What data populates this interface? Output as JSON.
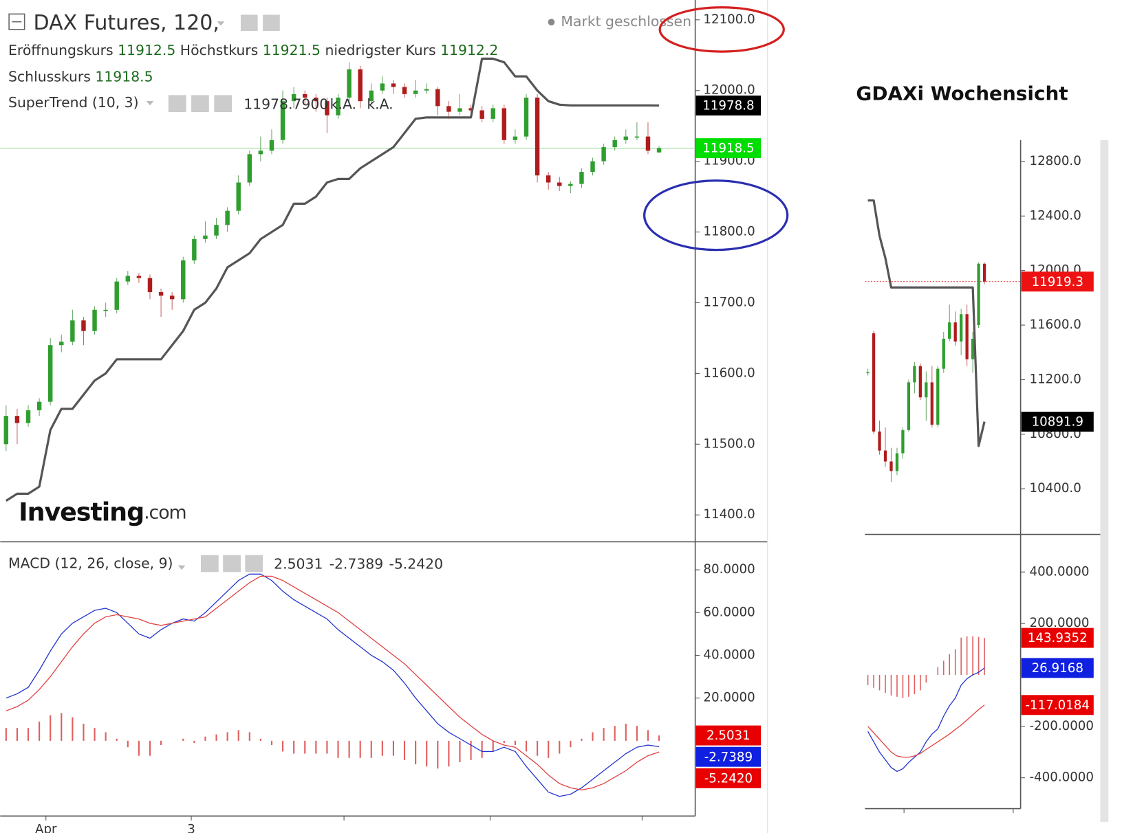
{
  "chart_data": [
    {
      "type": "candlestick",
      "title": "DAX Futures, 120,",
      "status": "Markt geschlossen",
      "ohlc_labels": {
        "open": "Eröffnungskurs",
        "high": "Höchstkurs",
        "low": "niedrigster Kurs",
        "close": "Schlusskurs"
      },
      "series": [
        {
          "name": "DAX Futures",
          "up_color": "#2f9e2f",
          "down_color": "#b01c1c",
          "open": [
            11500,
            11540,
            11530,
            11548,
            11560,
            11640,
            11645,
            11675,
            11660,
            11690,
            11690,
            11730,
            11738,
            11735,
            11715,
            11710,
            11705,
            11760,
            11790,
            11795,
            11810,
            11830,
            11870,
            11910,
            11915,
            11930,
            11985,
            11995,
            11990,
            11985,
            11965,
            11990,
            12030,
            11985,
            12000,
            12010,
            12005,
            11995,
            12000,
            12002,
            11978,
            11970,
            11975,
            11972,
            11960,
            11975,
            11930,
            11935,
            11990,
            11880,
            11870,
            11865,
            11868,
            11885,
            11900,
            11920,
            11930,
            11935,
            11935,
            11912.5
          ],
          "high": [
            11555,
            11550,
            11555,
            11565,
            11650,
            11655,
            11690,
            11680,
            11695,
            11700,
            11735,
            11745,
            11742,
            11740,
            11720,
            11715,
            11765,
            11795,
            11815,
            11820,
            11835,
            11880,
            11915,
            11935,
            11945,
            12000,
            12005,
            12000,
            11995,
            11990,
            11995,
            12040,
            12035,
            12010,
            12020,
            12015,
            12010,
            12015,
            12010,
            12005,
            11985,
            11995,
            11980,
            11978,
            11980,
            11980,
            11945,
            11995,
            11995,
            11885,
            11878,
            11872,
            11890,
            11905,
            11925,
            11935,
            11945,
            11955,
            11955,
            11921.5
          ],
          "low": [
            11490,
            11500,
            11525,
            11540,
            11555,
            11630,
            11640,
            11640,
            11655,
            11680,
            11685,
            11725,
            11728,
            11705,
            11680,
            11690,
            11700,
            11755,
            11785,
            11790,
            11800,
            11825,
            11865,
            11900,
            11910,
            11925,
            11975,
            11980,
            11970,
            11940,
            11960,
            11985,
            11975,
            11980,
            11995,
            11995,
            11990,
            11990,
            11995,
            11965,
            11960,
            11965,
            11965,
            11955,
            11955,
            11925,
            11925,
            11930,
            11870,
            11860,
            11858,
            11855,
            11862,
            11880,
            11895,
            11915,
            11925,
            11930,
            11910,
            11912.2
          ],
          "close": [
            11540,
            11530,
            11548,
            11560,
            11640,
            11645,
            11675,
            11660,
            11690,
            11690,
            11730,
            11738,
            11735,
            11715,
            11710,
            11705,
            11760,
            11790,
            11795,
            11810,
            11830,
            11870,
            11910,
            11915,
            11930,
            11985,
            11995,
            11990,
            11985,
            11965,
            11990,
            12030,
            11985,
            12000,
            12010,
            12005,
            11995,
            12000,
            12002,
            11978,
            11970,
            11975,
            11972,
            11960,
            11975,
            11930,
            11935,
            11990,
            11880,
            11870,
            11865,
            11868,
            11885,
            11900,
            11920,
            11930,
            11935,
            11935,
            11915,
            11918.5
          ]
        }
      ],
      "supertrend": {
        "name": "SuperTrend (10, 3)",
        "color": "#555555",
        "values": [
          11420,
          11430,
          11430,
          11440,
          11520,
          11550,
          11550,
          11570,
          11590,
          11600,
          11620,
          11620,
          11620,
          11620,
          11620,
          11640,
          11660,
          11690,
          11700,
          11720,
          11750,
          11760,
          11770,
          11790,
          11800,
          11810,
          11840,
          11840,
          11850,
          11870,
          11875,
          11875,
          11890,
          11900,
          11910,
          11920,
          11940,
          11960,
          11962,
          11962,
          11962,
          11962,
          11962,
          12045,
          12045,
          12040,
          12020,
          12020,
          12000,
          11985,
          11980,
          11979,
          11979,
          11979,
          11979,
          11979,
          11979,
          11979,
          11979,
          11978.79
        ],
        "last_label": "11978.7900",
        "tag_label": "11978.8",
        "na_labels": [
          "k.A.",
          "k.A."
        ]
      },
      "ylim": [
        11362,
        12128
      ],
      "yticks": [
        {
          "value": 12100,
          "label": "12100.0"
        },
        {
          "value": 12000,
          "label": "12000.0"
        },
        {
          "value": 11900,
          "label": "11900.0"
        },
        {
          "value": 11800,
          "label": "11800.0"
        },
        {
          "value": 11700,
          "label": "11700.0"
        },
        {
          "value": 11600,
          "label": "11600.0"
        },
        {
          "value": 11500,
          "label": "11500.0"
        },
        {
          "value": 11400,
          "label": "11400.0"
        }
      ],
      "xlabels": [
        "Apr",
        "3"
      ],
      "logo": [
        "Investing",
        ".com"
      ],
      "tag_color": "#00dd00"
    },
    {
      "type": "macd",
      "title": "MACD (12, 26, close, 9)",
      "series": [
        {
          "name": "Histogram",
          "color": "#e06060",
          "style": "histogram",
          "last_label": "2.5031",
          "values": [
            6,
            6,
            6,
            9,
            12,
            13,
            11,
            8,
            6,
            4,
            1,
            -3,
            -7,
            -7,
            -2,
            0,
            1,
            -1,
            2,
            3,
            4,
            5,
            4,
            1,
            -2,
            -5,
            -6,
            -6,
            -6,
            -6,
            -8,
            -8,
            -8,
            -8,
            -7,
            -7,
            -9,
            -11,
            -12,
            -13,
            -12,
            -10,
            -9,
            -8,
            -5,
            -1,
            -2,
            -5,
            -7,
            -8,
            -6,
            -3,
            1,
            4,
            6,
            7,
            8,
            7,
            5,
            2.5031
          ]
        },
        {
          "name": "MACD",
          "color": "#2233cc",
          "style": "line",
          "last_label": "-2.7389",
          "values": [
            20,
            22,
            25,
            33,
            42,
            50,
            55,
            58,
            61,
            62,
            60,
            55,
            50,
            48,
            52,
            55,
            57,
            56,
            60,
            65,
            70,
            75,
            78,
            78,
            75,
            70,
            66,
            63,
            60,
            57,
            52,
            48,
            44,
            40,
            37,
            33,
            27,
            20,
            14,
            8,
            4,
            1,
            -2,
            -5,
            -5,
            -3,
            -5,
            -12,
            -18,
            -24,
            -26,
            -25,
            -22,
            -18,
            -14,
            -10,
            -6,
            -3,
            -2,
            -2.7389
          ]
        },
        {
          "name": "Signal",
          "color": "#e04040",
          "style": "line",
          "last_label": "-5.2420",
          "values": [
            14,
            16,
            19,
            24,
            30,
            37,
            44,
            50,
            55,
            58,
            59,
            58,
            57,
            55,
            54,
            55,
            56,
            57,
            58,
            62,
            66,
            70,
            74,
            77,
            77,
            75,
            72,
            69,
            66,
            63,
            60,
            56,
            52,
            48,
            44,
            40,
            36,
            31,
            26,
            21,
            16,
            11,
            7,
            3,
            0,
            -2,
            -3,
            -7,
            -11,
            -16,
            -20,
            -22,
            -23,
            -22,
            -20,
            -17,
            -14,
            -10,
            -7,
            -5.242
          ]
        }
      ],
      "ylim": [
        -35.2,
        93.1
      ],
      "yticks": [
        {
          "value": 80,
          "label": "80.0000"
        },
        {
          "value": 60,
          "label": "60.0000"
        },
        {
          "value": 40,
          "label": "40.0000"
        },
        {
          "value": 20,
          "label": "20.0000"
        }
      ]
    },
    {
      "type": "candlestick",
      "title": "GDAXi Wochensicht",
      "series": [
        {
          "name": "GDAXi",
          "up_color": "#2f9e2f",
          "down_color": "#b01c1c",
          "open": [
            11250,
            11540,
            10820,
            10680,
            10600,
            10530,
            10660,
            10830,
            11180,
            11300,
            11070,
            11180,
            10870,
            11280,
            11500,
            11620,
            11480,
            11680,
            11350,
            11600,
            12050
          ],
          "high": [
            11280,
            11560,
            10900,
            10850,
            10700,
            10700,
            10850,
            11200,
            11330,
            11320,
            11260,
            11300,
            11300,
            11550,
            11750,
            11700,
            11720,
            11750,
            11550,
            12060,
            12060
          ],
          "low": [
            11230,
            10800,
            10650,
            10560,
            10450,
            10500,
            10620,
            10820,
            11100,
            11050,
            10900,
            10850,
            10850,
            11250,
            11480,
            11450,
            11380,
            11300,
            11250,
            11580,
            11900
          ],
          "close": [
            11255,
            10820,
            10680,
            10600,
            10530,
            10660,
            10830,
            11180,
            11300,
            11070,
            11180,
            10870,
            11280,
            11500,
            11620,
            11480,
            11680,
            11350,
            11500,
            12050,
            11919.3
          ]
        }
      ],
      "supertrend": {
        "name": "SuperTrend",
        "color": "#555555",
        "values": [
          12514,
          12514,
          12254,
          12092,
          11876,
          11876,
          11876,
          11876,
          11876,
          11876,
          11876,
          11876,
          11876,
          11876,
          11876,
          11876,
          11876,
          11876,
          11876,
          10714,
          10891.9
        ]
      },
      "ylim": [
        10065,
        12957
      ],
      "yticks": [
        {
          "value": 12800,
          "label": "12800.0"
        },
        {
          "value": 12400,
          "label": "12400.0"
        },
        {
          "value": 12000,
          "label": "12000.0"
        },
        {
          "value": 11600,
          "label": "11600.0"
        },
        {
          "value": 11200,
          "label": "11200.0"
        },
        {
          "value": 10800,
          "label": "10800.0"
        },
        {
          "value": 10400,
          "label": "10400.0"
        }
      ],
      "tag_color": "#ee1111"
    },
    {
      "type": "macd",
      "series": [
        {
          "name": "Histogram",
          "color": "#e06060",
          "style": "histogram",
          "last_label": "143.9352",
          "values": [
            -40,
            -50,
            -60,
            -70,
            -80,
            -85,
            -90,
            -85,
            -75,
            -60,
            -30,
            0,
            30,
            55,
            80,
            100,
            145,
            150,
            150,
            148,
            143.9352
          ]
        },
        {
          "name": "MACD",
          "color": "#2233cc",
          "style": "line",
          "last_label": "26.9168",
          "values": [
            -220,
            -260,
            -300,
            -330,
            -360,
            -375,
            -365,
            -340,
            -320,
            -300,
            -260,
            -230,
            -210,
            -160,
            -120,
            -90,
            -40,
            -15,
            0,
            10,
            26.9168
          ]
        },
        {
          "name": "Signal",
          "color": "#e04040",
          "style": "line",
          "last_label": "-117.0184",
          "values": [
            -200,
            -225,
            -250,
            -275,
            -300,
            -315,
            -320,
            -320,
            -315,
            -305,
            -290,
            -275,
            -260,
            -245,
            -230,
            -212,
            -195,
            -175,
            -155,
            -135,
            -117.0184
          ]
        }
      ],
      "ylim": [
        -520,
        546
      ],
      "yticks": [
        {
          "value": 400,
          "label": "400.0000"
        },
        {
          "value": 200,
          "label": "200.0000"
        },
        {
          "value": -200,
          "label": "-200.0000"
        },
        {
          "value": -400,
          "label": "-400.0000"
        }
      ]
    }
  ]
}
